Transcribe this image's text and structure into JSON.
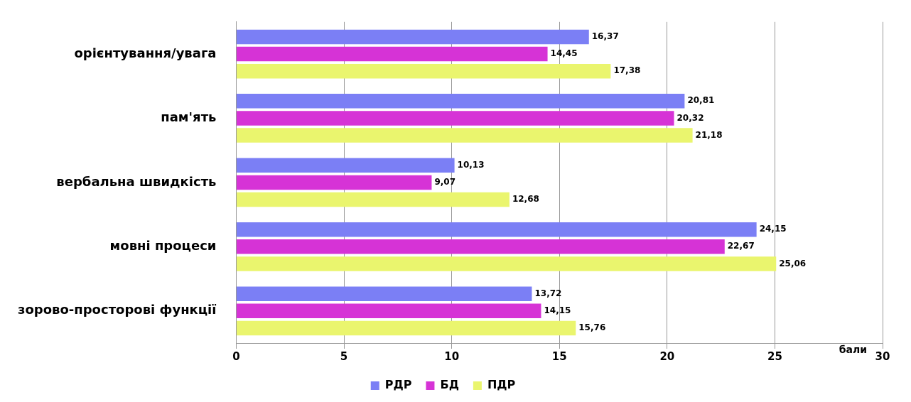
{
  "chart_data": {
    "type": "bar",
    "orientation": "horizontal",
    "categories": [
      "орієнтування/увага",
      "пам'ять",
      "вербальна швидкість",
      "мовні процеси",
      "зорово-просторові функції"
    ],
    "series": [
      {
        "name": "РДР",
        "color": "#7b7ff5",
        "values": [
          16.37,
          20.81,
          10.13,
          24.15,
          13.72
        ],
        "value_labels": [
          "16,37",
          "20,81",
          "10,13",
          "24,15",
          "13,72"
        ]
      },
      {
        "name": "БД",
        "color": "#d633d6",
        "values": [
          14.45,
          20.32,
          9.07,
          22.67,
          14.15
        ],
        "value_labels": [
          "14,45",
          "20,32",
          "9,07",
          "22,67",
          "14,15"
        ]
      },
      {
        "name": "ПДР",
        "color": "#eaf56e",
        "values": [
          17.38,
          21.18,
          12.68,
          25.06,
          15.76
        ],
        "value_labels": [
          "17,38",
          "21,18",
          "12,68",
          "25,06",
          "15,76"
        ]
      }
    ],
    "xlabel": "бали",
    "xlim": [
      0,
      30
    ],
    "xticks": [
      0,
      5,
      10,
      15,
      20,
      25,
      30
    ],
    "grid": "x",
    "legend": "bottom"
  }
}
